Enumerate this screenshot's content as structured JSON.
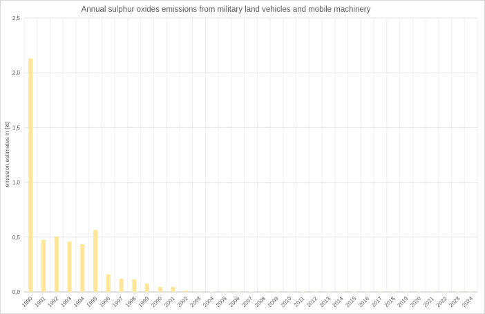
{
  "chart_data": {
    "type": "bar",
    "title": "Annual sulphur oxides emissions from military land vehicles and mobile machinery",
    "xlabel": "",
    "ylabel": "emission estimates in [kt]",
    "ylim": [
      0,
      2.5
    ],
    "yticks": [
      "0,0",
      "0,5",
      "1,0",
      "1,5",
      "2,0",
      "2,5"
    ],
    "ytick_values": [
      0,
      0.5,
      1.0,
      1.5,
      2.0,
      2.5
    ],
    "grid": true,
    "bar_color": "#FFE699",
    "categories": [
      "1990",
      "1991",
      "1992",
      "1993",
      "1994",
      "1995",
      "1996",
      "1997",
      "1998",
      "1999",
      "2000",
      "2001",
      "2002",
      "2003",
      "2004",
      "2005",
      "2006",
      "2007",
      "2008",
      "2009",
      "2010",
      "2011",
      "2012",
      "2013",
      "2014",
      "2015",
      "2016",
      "2017",
      "2018",
      "2019",
      "2020",
      "2021",
      "2022",
      "2023",
      "2024"
    ],
    "values": [
      2.13,
      0.475,
      0.505,
      0.46,
      0.435,
      0.565,
      0.16,
      0.12,
      0.115,
      0.075,
      0.045,
      0.045,
      0.01,
      0.002,
      0.002,
      0.002,
      0.002,
      0.002,
      0.002,
      0.002,
      0.002,
      0.002,
      0.002,
      0.002,
      0.002,
      0.002,
      0.002,
      0.002,
      0.002,
      0.002,
      0.002,
      0.002,
      0.002,
      0.002,
      0.002
    ]
  }
}
